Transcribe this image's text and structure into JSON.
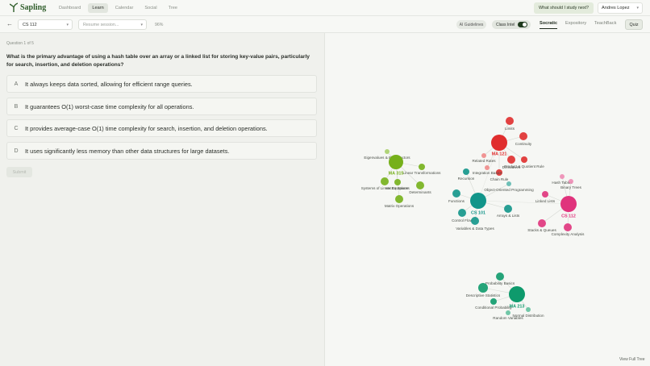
{
  "header": {
    "logo": "Sapling",
    "nav": [
      "Dashboard",
      "Learn",
      "Calendar",
      "Social",
      "Tree"
    ],
    "study_button": "What should I study next?",
    "user": "Andres Lopez"
  },
  "toolbar": {
    "course": "CS 112",
    "session_placeholder": "Resume session...",
    "progress": "96%",
    "ai_guidelines": "AI Guidelines",
    "class_intel": "Class Intel",
    "tabs": [
      "Socratic",
      "Expository",
      "TeachBack"
    ],
    "quiz": "Quiz"
  },
  "question": {
    "counter": "Question 1 of 5",
    "text": "What is the primary advantage of using a hash table over an array or a linked list for storing key-value pairs, particularly for search, insertion, and deletion operations?",
    "options": [
      {
        "letter": "A",
        "text": "It always keeps data sorted, allowing for efficient range queries."
      },
      {
        "letter": "B",
        "text": "It guarantees O(1) worst-case time complexity for all operations."
      },
      {
        "letter": "C",
        "text": "It provides average-case O(1) time complexity for search, insertion, and deletion operations."
      },
      {
        "letter": "D",
        "text": "It uses significantly less memory than other data structures for large datasets."
      }
    ],
    "submit": "Submit"
  },
  "graph": {
    "clusters": [
      {
        "name": "MA 121",
        "nodes": [
          "Limits",
          "Continuity",
          "Related Rates",
          "Derivatives",
          "Product & Quotient Rule",
          "Chain Rule",
          "Integration Basics"
        ]
      },
      {
        "name": "MA 315",
        "nodes": [
          "Eigenvalues & Eigenvectors",
          "Linear Transformations",
          "Vector Spaces",
          "Systems of Linear Equations",
          "Determinants",
          "Matrix Operations"
        ]
      },
      {
        "name": "CS 101",
        "nodes": [
          "Recursion",
          "Object-Oriented Programming",
          "Functions",
          "Control Flow",
          "Variables & Data Types",
          "Arrays & Lists"
        ]
      },
      {
        "name": "CS 112",
        "nodes": [
          "Hash Tables",
          "Binary Trees",
          "Linked Lists",
          "Stacks & Queues",
          "Complexity Analysis"
        ]
      },
      {
        "name": "MA 213",
        "nodes": [
          "Probability Basics",
          "Descriptive Statistics",
          "Conditional Probability",
          "Normal Distribution",
          "Random Variables"
        ]
      }
    ]
  },
  "footer_link": "View Full Tree"
}
